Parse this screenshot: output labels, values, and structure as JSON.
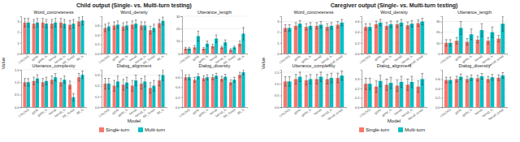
{
  "panels": [
    {
      "title": "Child output (Single- vs. Multi-turn testing)",
      "x_label": "Model",
      "y_label": "Value"
    },
    {
      "title": "Caregiver output (Single- vs. Multi-turn testing)",
      "x_label": "Model",
      "y_label": "Value"
    }
  ],
  "chart_data": [
    {
      "type": "bar",
      "title": "Word_concreteness",
      "legend": "bottom",
      "categories": [
        "CHILDES",
        "gpt4o",
        "gpt4o_fs",
        "llama3",
        "llama3_fs",
        "BB_Tuned",
        "BB_fs"
      ],
      "ylim": [
        0,
        3.5
      ],
      "yticks": [
        0,
        1,
        2,
        3
      ],
      "grid": true,
      "series": [
        {
          "name": "Single-turn",
          "color": "#F8766D",
          "values": [
            2.9,
            2.8,
            2.9,
            2.8,
            2.9,
            2.7,
            3.0
          ],
          "errors": [
            0.4,
            0.4,
            0.4,
            0.4,
            0.4,
            0.4,
            0.4
          ]
        },
        {
          "name": "Multi-turn",
          "color": "#00BFC4",
          "values": [
            2.9,
            2.9,
            2.8,
            2.9,
            2.8,
            2.8,
            3.1
          ],
          "errors": [
            0.4,
            0.4,
            0.4,
            0.4,
            0.4,
            0.4,
            0.4
          ]
        }
      ]
    },
    {
      "type": "bar",
      "title": "Word_density",
      "categories": [
        "CHILDES",
        "gpt4o",
        "gpt4o_fs",
        "llama3",
        "llama3_fs",
        "BB_Tuned",
        "BB_fs"
      ],
      "ylim": [
        0,
        0.8
      ],
      "yticks": [
        {
          "value": 0,
          "label": "0.0"
        },
        0.2,
        0.4,
        0.6
      ],
      "grid": true,
      "series": [
        {
          "name": "Single-turn",
          "color": "#F8766D",
          "values": [
            0.55,
            0.6,
            0.58,
            0.62,
            0.6,
            0.5,
            0.65
          ],
          "errors": [
            0.08,
            0.08,
            0.08,
            0.08,
            0.08,
            0.08,
            0.08
          ]
        },
        {
          "name": "Multi-turn",
          "color": "#00BFC4",
          "values": [
            0.58,
            0.62,
            0.6,
            0.64,
            0.6,
            0.55,
            0.7
          ],
          "errors": [
            0.08,
            0.08,
            0.08,
            0.08,
            0.08,
            0.08,
            0.08
          ]
        }
      ]
    },
    {
      "type": "bar",
      "title": "Utterance_length",
      "categories": [
        "CHILDES",
        "gpt4o",
        "gpt4o_fs",
        "llama3",
        "llama3_fs",
        "BB_Tuned",
        "BB_fs"
      ],
      "ylim": [
        0,
        30
      ],
      "yticks": [
        0,
        10,
        20,
        30
      ],
      "grid": true,
      "series": [
        {
          "name": "Single-turn",
          "color": "#F8766D",
          "values": [
            4,
            5,
            4,
            6,
            5,
            3,
            8
          ],
          "errors": [
            1,
            1.5,
            1,
            1.5,
            1,
            1,
            2
          ]
        },
        {
          "name": "Multi-turn",
          "color": "#00BFC4",
          "values": [
            4,
            14,
            8,
            12,
            9,
            5,
            16
          ],
          "errors": [
            1,
            4,
            2,
            3,
            2,
            1,
            5
          ]
        }
      ]
    },
    {
      "type": "bar",
      "title": "Utterance_complexity",
      "categories": [
        "CHILDES",
        "gpt4o",
        "gpt4o_fs",
        "llama3",
        "llama3_fs",
        "BB_Tuned",
        "BB_fs"
      ],
      "ylim": [
        0,
        1.5
      ],
      "yticks": [
        {
          "value": 0,
          "label": "0.0"
        },
        0.5,
        {
          "value": 1,
          "label": "1.0"
        },
        1.5
      ],
      "grid": true,
      "series": [
        {
          "name": "Single-turn",
          "color": "#F8766D",
          "values": [
            1.0,
            1.05,
            1.0,
            1.1,
            1.0,
            0.9,
            1.2
          ],
          "errors": [
            0.15,
            0.15,
            0.15,
            0.15,
            0.15,
            0.15,
            0.15
          ]
        },
        {
          "name": "Multi-turn",
          "color": "#00BFC4",
          "values": [
            1.0,
            1.15,
            1.05,
            1.2,
            1.1,
            0.4,
            1.3
          ],
          "errors": [
            0.15,
            0.15,
            0.15,
            0.15,
            0.15,
            0.15,
            0.15
          ]
        }
      ]
    },
    {
      "type": "bar",
      "title": "Dialog_alignment",
      "categories": [
        "CHILDES",
        "gpt4o",
        "gpt4o_fs",
        "llama3",
        "llama3_fs",
        "BB_Tuned",
        "BB_fs"
      ],
      "ylim": [
        0,
        0.35
      ],
      "yticks": [
        {
          "value": 0,
          "label": "0.0"
        },
        0.1,
        0.2,
        0.3
      ],
      "grid": true,
      "series": [
        {
          "name": "Single-turn",
          "color": "#F8766D",
          "values": [
            0.22,
            0.2,
            0.21,
            0.2,
            0.22,
            0.18,
            0.25
          ],
          "errors": [
            0.05,
            0.05,
            0.05,
            0.05,
            0.05,
            0.05,
            0.05
          ]
        },
        {
          "name": "Multi-turn",
          "color": "#00BFC4",
          "values": [
            0.22,
            0.24,
            0.23,
            0.25,
            0.24,
            0.2,
            0.3
          ],
          "errors": [
            0.05,
            0.05,
            0.05,
            0.05,
            0.05,
            0.05,
            0.05
          ]
        }
      ]
    },
    {
      "type": "bar",
      "title": "Dialog_diversity",
      "categories": [
        "CHILDES",
        "gpt4o",
        "gpt4o_fs",
        "llama3",
        "llama3_fs",
        "BB_Tuned",
        "BB_fs"
      ],
      "ylim": [
        0,
        0.75
      ],
      "yticks": [
        {
          "value": 0,
          "label": "0.0"
        },
        0.2,
        0.4,
        0.6
      ],
      "grid": true,
      "series": [
        {
          "name": "Single-turn",
          "color": "#F8766D",
          "values": [
            0.6,
            0.55,
            0.58,
            0.6,
            0.57,
            0.5,
            0.65
          ],
          "errors": [
            0.05,
            0.05,
            0.05,
            0.05,
            0.05,
            0.05,
            0.05
          ]
        },
        {
          "name": "Multi-turn",
          "color": "#00BFC4",
          "values": [
            0.6,
            0.62,
            0.6,
            0.63,
            0.61,
            0.55,
            0.7
          ],
          "errors": [
            0.05,
            0.05,
            0.05,
            0.05,
            0.05,
            0.05,
            0.05
          ]
        }
      ]
    },
    {
      "type": "bar",
      "title": "Word_concreteness",
      "legend": "bottom",
      "categories": [
        "CHILDES",
        "gpt4o",
        "gpt4o_fs",
        "llama3",
        "llama3_fs",
        "llama3_tuned"
      ],
      "ylim": [
        0,
        3.5
      ],
      "yticks": [
        0,
        1,
        2,
        3
      ],
      "grid": true,
      "series": [
        {
          "name": "Single-turn",
          "color": "#F8766D",
          "values": [
            2.4,
            2.6,
            2.5,
            2.6,
            2.5,
            2.7
          ],
          "errors": [
            0.3,
            0.3,
            0.3,
            0.3,
            0.3,
            0.3
          ]
        },
        {
          "name": "Multi-turn",
          "color": "#00BFC4",
          "values": [
            2.4,
            2.8,
            2.6,
            2.7,
            2.6,
            2.9
          ],
          "errors": [
            0.3,
            0.3,
            0.3,
            0.3,
            0.3,
            0.3
          ]
        }
      ]
    },
    {
      "type": "bar",
      "title": "Word_density",
      "categories": [
        "CHILDES",
        "gpt4o",
        "gpt4o_fs",
        "llama3",
        "llama3_fs",
        "llama3_tuned"
      ],
      "ylim": [
        0,
        0.7
      ],
      "yticks": [
        {
          "value": 0,
          "label": "0.0"
        },
        0.2,
        0.4,
        0.6
      ],
      "grid": true,
      "series": [
        {
          "name": "Single-turn",
          "color": "#F8766D",
          "values": [
            0.5,
            0.55,
            0.52,
            0.55,
            0.53,
            0.57
          ],
          "errors": [
            0.06,
            0.06,
            0.06,
            0.06,
            0.06,
            0.06
          ]
        },
        {
          "name": "Multi-turn",
          "color": "#00BFC4",
          "values": [
            0.5,
            0.58,
            0.55,
            0.58,
            0.56,
            0.6
          ],
          "errors": [
            0.06,
            0.06,
            0.06,
            0.06,
            0.06,
            0.06
          ]
        }
      ]
    },
    {
      "type": "bar",
      "title": "Utterance_length",
      "categories": [
        "CHILDES",
        "gpt4o",
        "gpt4o_fs",
        "llama3",
        "llama3_fs",
        "llama3_tuned"
      ],
      "ylim": [
        0,
        35
      ],
      "yticks": [
        0,
        10,
        20,
        30
      ],
      "grid": true,
      "series": [
        {
          "name": "Single-turn",
          "color": "#F8766D",
          "values": [
            10,
            12,
            11,
            13,
            12,
            14
          ],
          "errors": [
            3,
            3,
            3,
            3,
            3,
            3
          ]
        },
        {
          "name": "Multi-turn",
          "color": "#00BFC4",
          "values": [
            10,
            24,
            18,
            22,
            20,
            28
          ],
          "errors": [
            3,
            6,
            5,
            6,
            5,
            7
          ]
        }
      ]
    },
    {
      "type": "bar",
      "title": "Utterance_complexity",
      "categories": [
        "CHILDES",
        "gpt4o",
        "gpt4o_fs",
        "llama3",
        "llama3_fs",
        "llama3_tuned"
      ],
      "ylim": [
        0,
        1.6
      ],
      "yticks": [
        {
          "value": 0,
          "label": "0.0"
        },
        0.5,
        {
          "value": 1,
          "label": "1.0"
        },
        1.5
      ],
      "grid": true,
      "series": [
        {
          "name": "Single-turn",
          "color": "#F8766D",
          "values": [
            1.1,
            1.2,
            1.15,
            1.2,
            1.2,
            1.25
          ],
          "errors": [
            0.2,
            0.2,
            0.2,
            0.2,
            0.2,
            0.2
          ]
        },
        {
          "name": "Multi-turn",
          "color": "#00BFC4",
          "values": [
            1.1,
            1.3,
            1.2,
            1.3,
            1.25,
            1.35
          ],
          "errors": [
            0.2,
            0.2,
            0.2,
            0.2,
            0.2,
            0.2
          ]
        }
      ]
    },
    {
      "type": "bar",
      "title": "Dialog_alignment",
      "categories": [
        "CHILDES",
        "gpt4o",
        "gpt4o_fs",
        "llama3",
        "llama3_fs",
        "llama3_tuned"
      ],
      "ylim": [
        0,
        0.4
      ],
      "yticks": [
        {
          "value": 0,
          "label": "0.0"
        },
        0.1,
        0.2,
        0.3
      ],
      "grid": true,
      "series": [
        {
          "name": "Single-turn",
          "color": "#F8766D",
          "values": [
            0.25,
            0.22,
            0.24,
            0.23,
            0.24,
            0.22
          ],
          "errors": [
            0.06,
            0.06,
            0.06,
            0.06,
            0.06,
            0.06
          ]
        },
        {
          "name": "Multi-turn",
          "color": "#00BFC4",
          "values": [
            0.25,
            0.28,
            0.26,
            0.27,
            0.27,
            0.3
          ],
          "errors": [
            0.06,
            0.06,
            0.06,
            0.06,
            0.06,
            0.06
          ]
        }
      ]
    },
    {
      "type": "bar",
      "title": "Dialog_diversity",
      "categories": [
        "CHILDES",
        "gpt4o",
        "gpt4o_fs",
        "llama3",
        "llama3_fs",
        "llama3_tuned"
      ],
      "ylim": [
        0,
        0.8
      ],
      "yticks": [
        {
          "value": 0,
          "label": "0.0"
        },
        0.2,
        0.4,
        0.6
      ],
      "grid": true,
      "series": [
        {
          "name": "Single-turn",
          "color": "#F8766D",
          "values": [
            0.58,
            0.6,
            0.6,
            0.62,
            0.6,
            0.63
          ],
          "errors": [
            0.06,
            0.06,
            0.06,
            0.06,
            0.06,
            0.06
          ]
        },
        {
          "name": "Multi-turn",
          "color": "#00BFC4",
          "values": [
            0.58,
            0.65,
            0.63,
            0.66,
            0.64,
            0.68
          ],
          "errors": [
            0.06,
            0.06,
            0.06,
            0.06,
            0.06,
            0.06
          ]
        }
      ]
    }
  ]
}
